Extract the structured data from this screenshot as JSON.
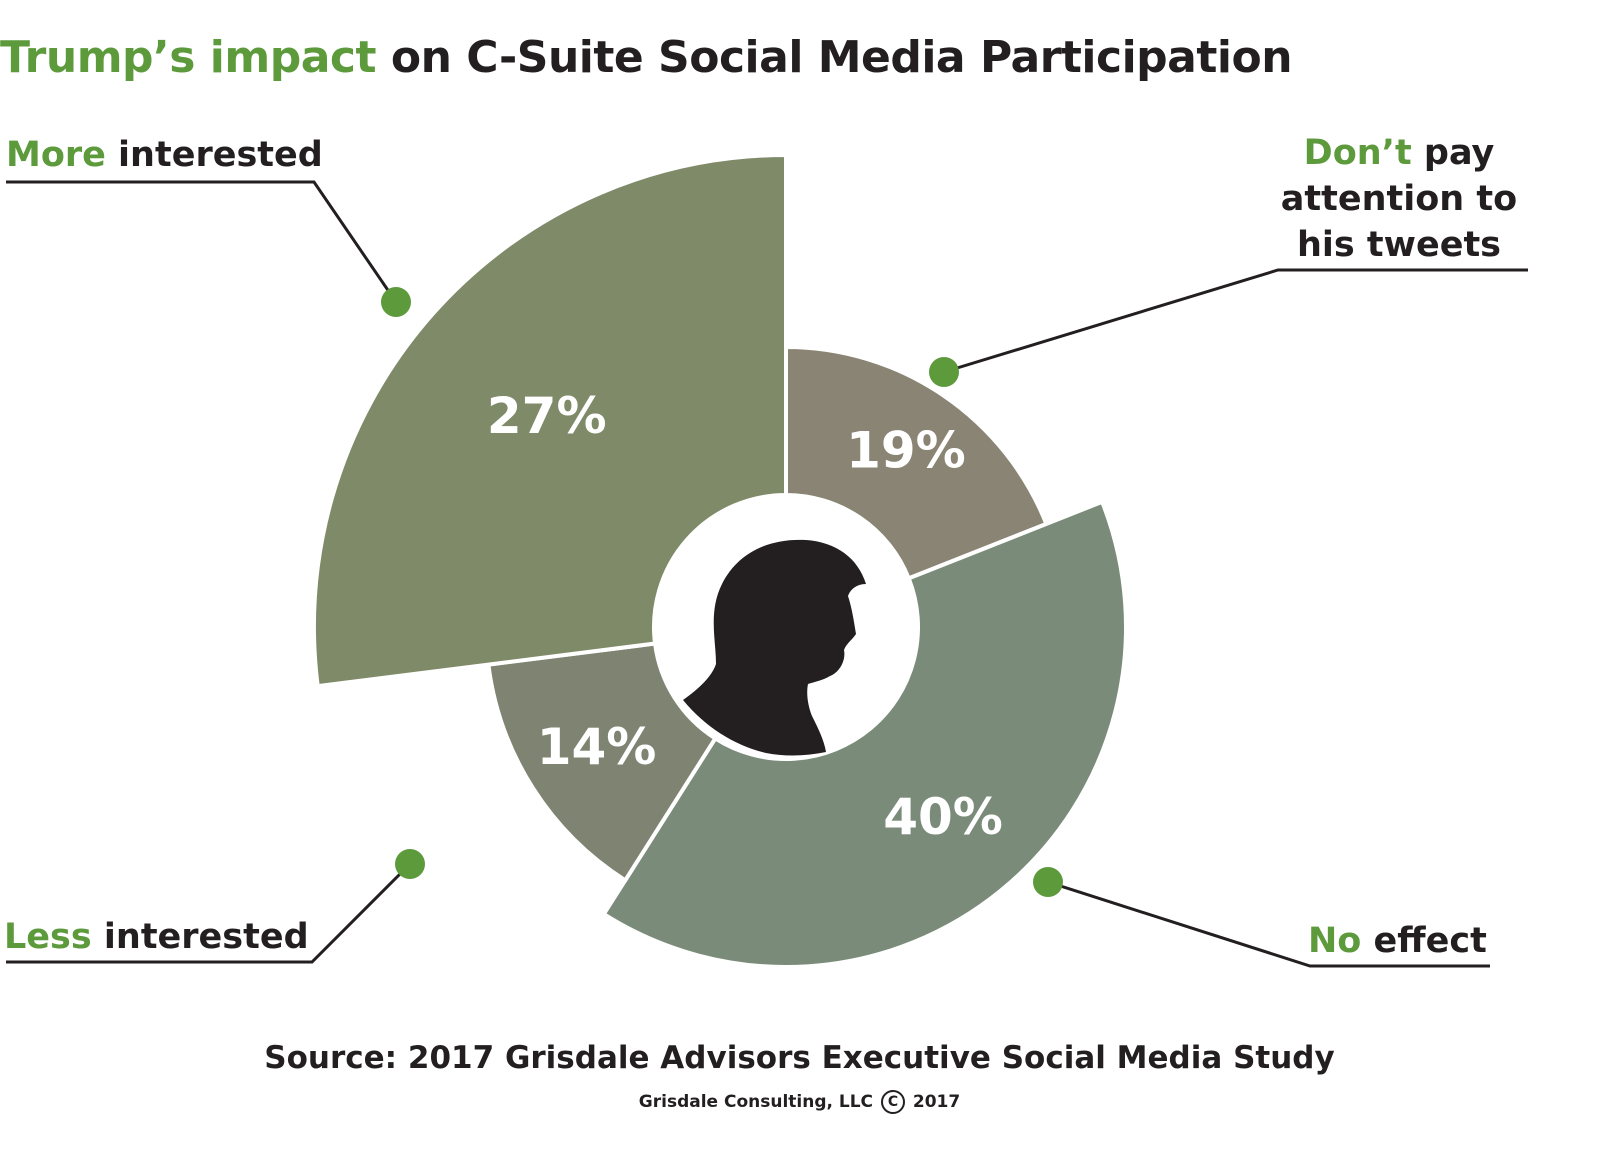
{
  "title": {
    "highlight": "Trump’s impact",
    "rest": " on C-Suite Social Media Participation"
  },
  "labels": {
    "more": {
      "highlight": "More",
      "rest": " interested"
    },
    "dont": {
      "highlight": "Don’t",
      "rest_line1": " pay",
      "line2": "attention to",
      "line3": "his tweets"
    },
    "less": {
      "highlight": "Less",
      "rest": " interested"
    },
    "noeffect": {
      "highlight": "No",
      "rest": " effect"
    }
  },
  "source": "Source: 2017 Grisdale Advisors Executive Social Media Study",
  "copyright": {
    "before": "Grisdale Consulting, LLC",
    "symbol": "C",
    "after": "2017"
  },
  "colors": {
    "accent": "#5c9a3c",
    "more": "#7f8a69",
    "dont": "#8a8474",
    "noeffect": "#7a8c79",
    "less": "#7f8472"
  },
  "chart_data": {
    "type": "pie",
    "categories": [
      "Don’t pay attention to his tweets",
      "No effect",
      "Less interested",
      "More interested"
    ],
    "values": [
      19,
      40,
      14,
      27
    ],
    "value_labels": [
      "19%",
      "40%",
      "14%",
      "27%"
    ],
    "style": "polar area chart (radius varies by value) with center silhouette"
  }
}
